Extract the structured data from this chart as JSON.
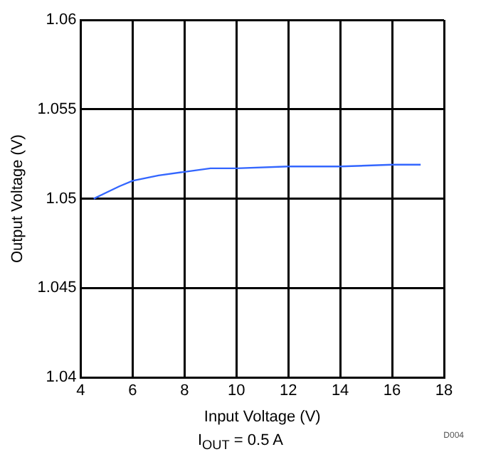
{
  "chart_data": {
    "type": "line",
    "xlabel": "Input Voltage (V)",
    "ylabel": "Output Voltage (V)",
    "annotations": [
      "I$_{OUT}$ = 0.5 A",
      "D004"
    ],
    "x": [
      4.5,
      5,
      5.5,
      6,
      7,
      8,
      9,
      10,
      12,
      14,
      16,
      17.1
    ],
    "series": [
      {
        "color": "#3366ff",
        "values": [
          1.05,
          1.05035,
          1.0507,
          1.051,
          1.0513,
          1.0515,
          1.0517,
          1.0517,
          1.0518,
          1.0518,
          1.0519,
          1.0519
        ]
      }
    ],
    "xlim": [
      4,
      18
    ],
    "xticks": [
      4,
      6,
      8,
      10,
      12,
      14,
      16,
      18
    ],
    "ylim": [
      1.04,
      1.06
    ],
    "yticks": [
      1.04,
      1.045,
      1.05,
      1.055,
      1.06
    ],
    "grid": true,
    "legend": false,
    "marker": "none",
    "line_style": "solid"
  }
}
